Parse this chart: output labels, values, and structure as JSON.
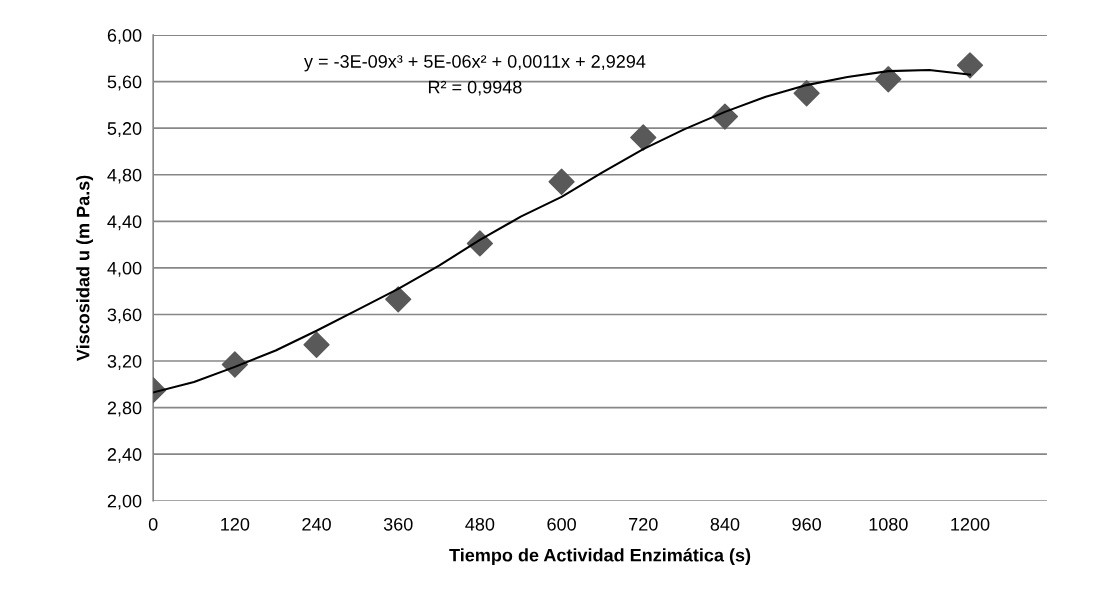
{
  "chart_data": {
    "type": "scatter",
    "xlabel": "Tiempo de Actividad Enzimática (s)",
    "ylabel": "Viscosidad u (m Pa.s)",
    "annotations": [
      "y = -3E-09x³ + 5E-06x² + 0,0011x + 2,9294",
      "R² = 0,9948"
    ],
    "x": [
      0,
      120,
      240,
      360,
      480,
      600,
      720,
      840,
      960,
      1080,
      1200
    ],
    "series": [
      {
        "color": "#595959",
        "marker": "diamond",
        "values": [
          2.95,
          3.17,
          3.34,
          3.73,
          4.21,
          4.74,
          5.12,
          5.3,
          5.5,
          5.62,
          5.74
        ]
      },
      {
        "type": "line",
        "color": "#000000",
        "marker": "none",
        "x": [
          0,
          60,
          120,
          180,
          240,
          300,
          360,
          420,
          480,
          540,
          600,
          660,
          720,
          780,
          840,
          900,
          960,
          1020,
          1080,
          1140,
          1200
        ],
        "values": [
          2.93,
          3.02,
          3.15,
          3.29,
          3.46,
          3.64,
          3.82,
          4.02,
          4.24,
          4.44,
          4.61,
          4.82,
          5.02,
          5.19,
          5.34,
          5.47,
          5.57,
          5.64,
          5.69,
          5.7,
          5.66
        ]
      }
    ],
    "xlim": [
      0,
      1313
    ],
    "xticks": [
      0,
      120,
      240,
      360,
      480,
      600,
      720,
      840,
      960,
      1080,
      1200
    ],
    "ylim": [
      2,
      6
    ],
    "yticks": [
      {
        "value": 2,
        "label": "2,00"
      },
      {
        "value": 2.4,
        "label": "2,40"
      },
      {
        "value": 2.8,
        "label": "2,80"
      },
      {
        "value": 3.2,
        "label": "3,20"
      },
      {
        "value": 3.6,
        "label": "3,60"
      },
      {
        "value": 4,
        "label": "4,00"
      },
      {
        "value": 4.4,
        "label": "4,40"
      },
      {
        "value": 4.8,
        "label": "4,80"
      },
      {
        "value": 5.2,
        "label": "5,20"
      },
      {
        "value": 5.6,
        "label": "5,60"
      },
      {
        "value": 6,
        "label": "6,00"
      }
    ],
    "grid": "y"
  }
}
